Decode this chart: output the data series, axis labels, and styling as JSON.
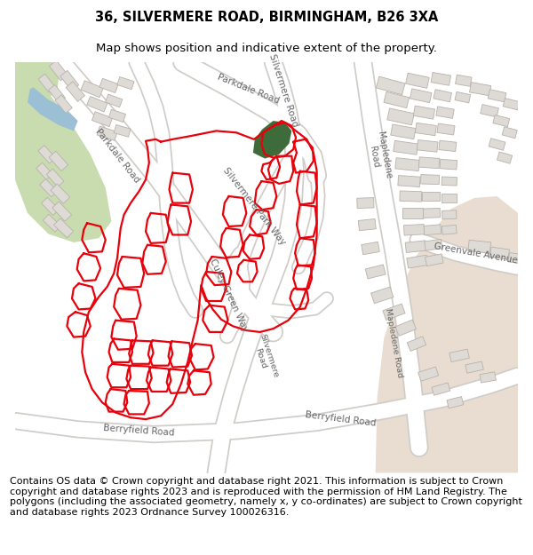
{
  "title_line1": "36, SILVERMERE ROAD, BIRMINGHAM, B26 3XA",
  "title_line2": "Map shows position and indicative extent of the property.",
  "footer_text": "Contains OS data © Crown copyright and database right 2021. This information is subject to Crown copyright and database rights 2023 and is reproduced with the permission of HM Land Registry. The polygons (including the associated geometry, namely x, y co-ordinates) are subject to Crown copyright and database rights 2023 Ordnance Survey 100026316.",
  "title_fontsize": 10.5,
  "subtitle_fontsize": 9.5,
  "footer_fontsize": 8.0,
  "map_bg": "#f0eeeb",
  "road_fill": "#ffffff",
  "road_edge": "#d0ccc8",
  "green_light": "#c8dcb0",
  "green_dark": "#3d6b3a",
  "blue_water": "#9bbfd4",
  "bldg_fill": "#dedad6",
  "bldg_edge": "#b8b2aa",
  "tan_fill": "#e8ddd0",
  "red": "#e8000a",
  "label_color": "#666666"
}
